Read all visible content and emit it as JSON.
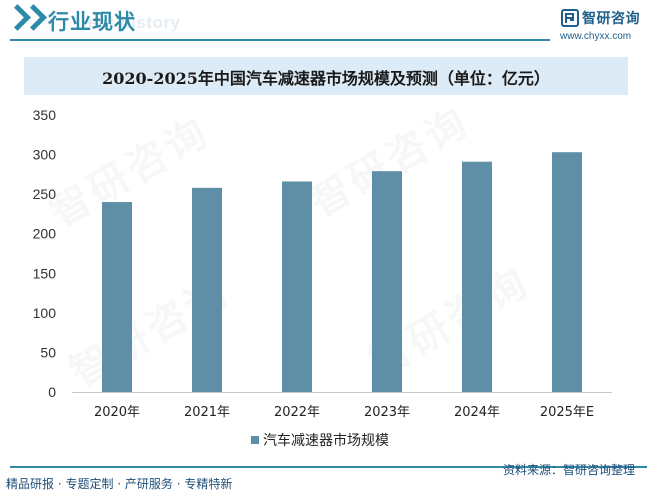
{
  "header": {
    "title": "行业现状",
    "bg_text": "ent history",
    "logo_name": "智研咨询",
    "logo_url": "www.chyxx.com"
  },
  "watermark": "智研咨询",
  "chart_data": {
    "type": "bar",
    "title": "2020-2025年中国汽车减速器市场规模及预测（单位：亿元）",
    "categories": [
      "2020年",
      "2021年",
      "2022年",
      "2023年",
      "2024年",
      "2025年E"
    ],
    "series": [
      {
        "name": "汽车减速器市场规模",
        "values": [
          240,
          258,
          266,
          279,
          291,
          303
        ],
        "color": "#5e8fa6"
      }
    ],
    "ylim": [
      0,
      350
    ],
    "yticks": [
      0,
      50,
      100,
      150,
      200,
      250,
      300,
      350
    ],
    "xlabel": "",
    "ylabel": "",
    "legend": "bottom-center"
  },
  "footer": {
    "left": "精品研报 · 专题定制 · 产研服务 · 专精特新",
    "source": "资料来源：智研咨询整理"
  },
  "colors": {
    "accent": "#2f8aa8",
    "bar": "#5e8fa6",
    "title_bg": "#dcebf5",
    "footer_text": "#1f4e79"
  }
}
